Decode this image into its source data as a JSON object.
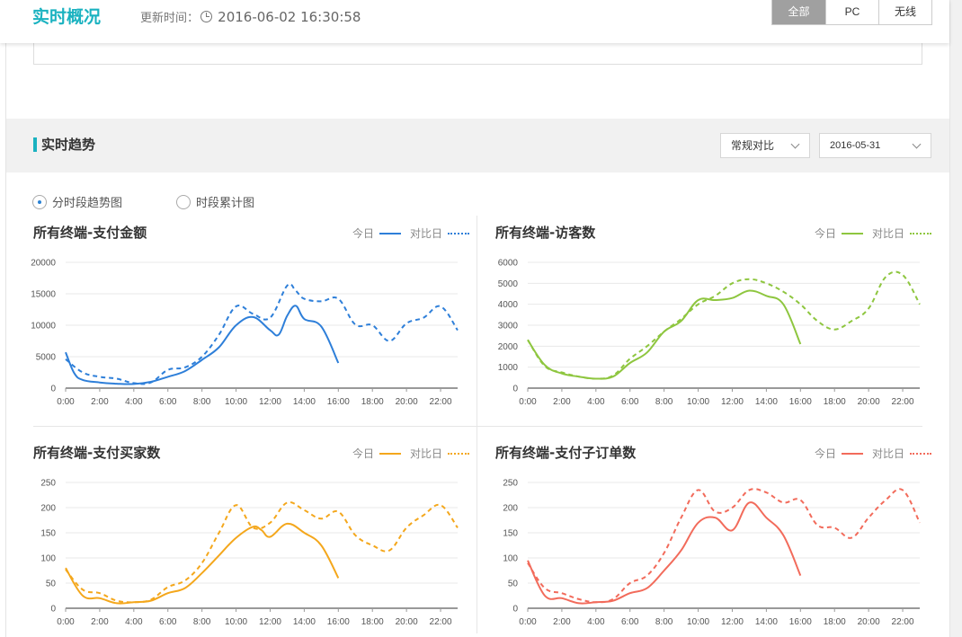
{
  "header": {
    "title": "实时概况",
    "update_label": "更新时间：",
    "update_time": "2016-06-02 16:30:58",
    "segments": [
      {
        "label": "全部",
        "active": true
      },
      {
        "label": "PC",
        "active": false
      },
      {
        "label": "无线",
        "active": false
      }
    ]
  },
  "trend": {
    "title": "实时趋势",
    "compare_mode": "常规对比",
    "compare_date": "2016-05-31",
    "radios": [
      {
        "label": "分时段趋势图",
        "checked": true
      },
      {
        "label": "时段累计图",
        "checked": false
      }
    ]
  },
  "legend": {
    "today": "今日",
    "compare": "对比日"
  },
  "chart_data": [
    {
      "type": "line",
      "title": "所有终端-支付金额",
      "color": "#2e7fd9",
      "ylim": [
        0,
        20000
      ],
      "yticks": [
        "0",
        "5000",
        "10000",
        "15000",
        "20000"
      ],
      "xticks": [
        "0:00",
        "2:00",
        "4:00",
        "6:00",
        "8:00",
        "10:00",
        "12:00",
        "14:00",
        "16:00",
        "18:00",
        "20:00",
        "22:00"
      ],
      "series": [
        {
          "name": "今日",
          "style": "solid",
          "x": [
            0,
            0.5,
            1,
            2,
            3,
            4,
            5,
            6,
            7,
            8,
            9,
            10,
            11,
            12,
            12.5,
            13,
            13.5,
            14,
            15,
            16
          ],
          "values": [
            5700,
            2400,
            1300,
            900,
            700,
            650,
            1000,
            1800,
            2700,
            4500,
            6500,
            10000,
            11300,
            9200,
            8500,
            11500,
            13100,
            11000,
            9800,
            4000
          ]
        },
        {
          "name": "对比日",
          "style": "dashed",
          "x": [
            0,
            1,
            2,
            3,
            4,
            5,
            6,
            7,
            8,
            9,
            10,
            11,
            12,
            13,
            13.5,
            14,
            15,
            16,
            17,
            18,
            19,
            20,
            21,
            22,
            23
          ],
          "values": [
            4600,
            2500,
            1800,
            1500,
            800,
            900,
            2900,
            3300,
            5000,
            8500,
            13000,
            11800,
            11200,
            16300,
            15500,
            14200,
            13800,
            14200,
            10100,
            10000,
            7500,
            10300,
            11200,
            13000,
            9200
          ]
        }
      ]
    },
    {
      "type": "line",
      "title": "所有终端-访客数",
      "color": "#8ec63f",
      "ylim": [
        0,
        6000
      ],
      "yticks": [
        "0",
        "1000",
        "2000",
        "3000",
        "4000",
        "5000",
        "6000"
      ],
      "xticks": [
        "0:00",
        "2:00",
        "4:00",
        "6:00",
        "8:00",
        "10:00",
        "12:00",
        "14:00",
        "16:00",
        "18:00",
        "20:00",
        "22:00"
      ],
      "series": [
        {
          "name": "今日",
          "style": "solid",
          "x": [
            0,
            1,
            2,
            3,
            4,
            5,
            6,
            7,
            8,
            9,
            10,
            11,
            12,
            13,
            14,
            15,
            16
          ],
          "values": [
            2300,
            1100,
            700,
            550,
            450,
            550,
            1200,
            1700,
            2700,
            3200,
            4200,
            4200,
            4300,
            4650,
            4400,
            4000,
            2100
          ]
        },
        {
          "name": "对比日",
          "style": "dashed",
          "x": [
            0,
            1,
            2,
            3,
            4,
            5,
            6,
            7,
            8,
            9,
            10,
            11,
            12,
            13,
            14,
            15,
            16,
            17,
            18,
            19,
            20,
            21,
            22,
            23
          ],
          "values": [
            2300,
            1050,
            750,
            550,
            450,
            600,
            1400,
            2000,
            2700,
            3300,
            4000,
            4400,
            5000,
            5200,
            5000,
            4600,
            4000,
            3200,
            2800,
            3200,
            3800,
            5300,
            5400,
            4000
          ]
        }
      ]
    },
    {
      "type": "line",
      "title": "所有终端-支付买家数",
      "color": "#f4a71c",
      "ylim": [
        0,
        250
      ],
      "yticks": [
        "0",
        "50",
        "100",
        "150",
        "200",
        "250"
      ],
      "xticks": [
        "0:00",
        "2:00",
        "4:00",
        "6:00",
        "8:00",
        "10:00",
        "12:00",
        "14:00",
        "16:00",
        "18:00",
        "20:00",
        "22:00"
      ],
      "series": [
        {
          "name": "今日",
          "style": "solid",
          "x": [
            0,
            1,
            2,
            3,
            4,
            5,
            6,
            7,
            8,
            9,
            10,
            11,
            11.5,
            12,
            13,
            14,
            15,
            16
          ],
          "values": [
            80,
            25,
            20,
            10,
            12,
            15,
            30,
            40,
            70,
            105,
            140,
            162,
            155,
            142,
            168,
            150,
            125,
            60
          ]
        },
        {
          "name": "对比日",
          "style": "dashed",
          "x": [
            0,
            1,
            2,
            3,
            4,
            5,
            6,
            7,
            8,
            9,
            10,
            11,
            12,
            13,
            14,
            15,
            16,
            17,
            18,
            19,
            20,
            21,
            22,
            23
          ],
          "values": [
            77,
            37,
            30,
            15,
            12,
            17,
            42,
            55,
            90,
            150,
            205,
            160,
            170,
            210,
            195,
            178,
            192,
            145,
            125,
            115,
            160,
            185,
            205,
            160
          ]
        }
      ]
    },
    {
      "type": "line",
      "title": "所有终端-支付子订单数",
      "color": "#f26b5b",
      "ylim": [
        0,
        250
      ],
      "yticks": [
        "0",
        "50",
        "100",
        "150",
        "200",
        "250"
      ],
      "xticks": [
        "0:00",
        "2:00",
        "4:00",
        "6:00",
        "8:00",
        "10:00",
        "12:00",
        "14:00",
        "16:00",
        "18:00",
        "20:00",
        "22:00"
      ],
      "series": [
        {
          "name": "今日",
          "style": "solid",
          "x": [
            0,
            1,
            2,
            3,
            4,
            5,
            6,
            7,
            8,
            9,
            10,
            11,
            12,
            13,
            14,
            15,
            16
          ],
          "values": [
            95,
            25,
            20,
            10,
            12,
            15,
            30,
            40,
            75,
            115,
            170,
            180,
            155,
            210,
            180,
            145,
            65
          ]
        },
        {
          "name": "对比日",
          "style": "dashed",
          "x": [
            0,
            1,
            2,
            3,
            4,
            5,
            6,
            7,
            8,
            9,
            10,
            11,
            12,
            13,
            14,
            15,
            16,
            17,
            18,
            19,
            20,
            21,
            22,
            23
          ],
          "values": [
            90,
            40,
            30,
            18,
            12,
            18,
            50,
            65,
            110,
            180,
            235,
            192,
            200,
            235,
            230,
            210,
            215,
            165,
            160,
            140,
            180,
            215,
            235,
            170
          ]
        }
      ]
    }
  ]
}
